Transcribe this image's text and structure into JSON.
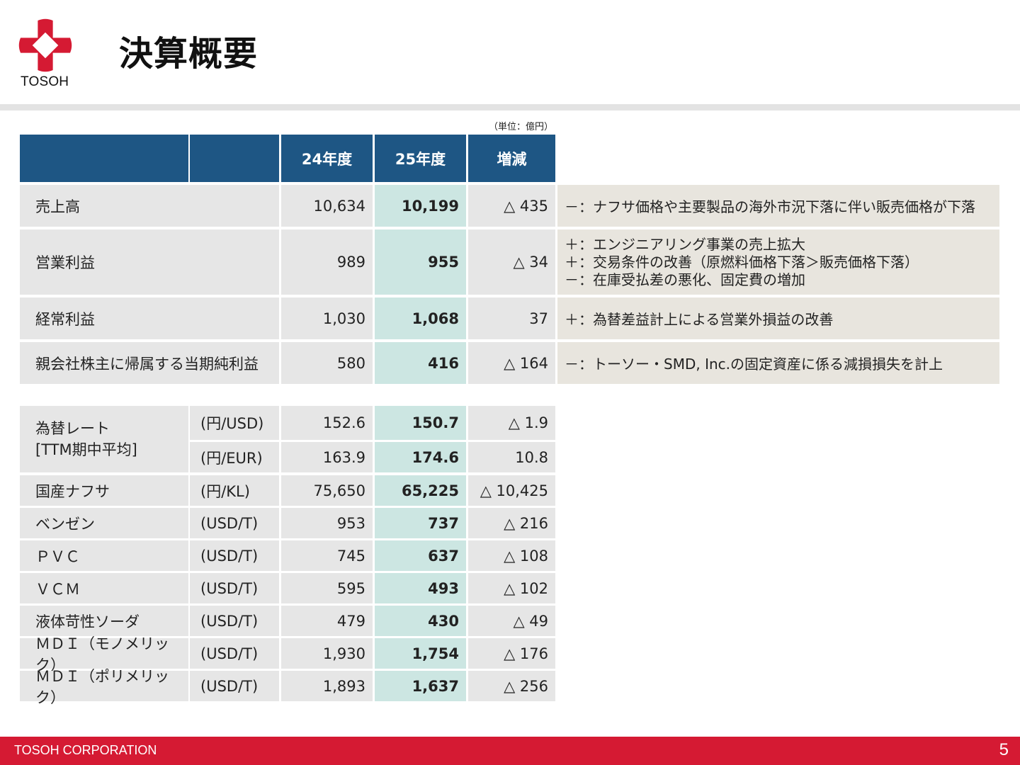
{
  "header": {
    "logo_text": "TOSOH",
    "title": "決算概要",
    "unit_note": "（単位：億円）"
  },
  "colors": {
    "brand_red": "#d51a33",
    "header_blue": "#1e5684",
    "highlight_teal": "#cce6e2",
    "row_gray": "#e6e6e6",
    "note_beige": "#e8e5de"
  },
  "summary_table": {
    "columns": [
      "24年度",
      "25年度",
      "増減"
    ],
    "rows": [
      {
        "label": "売上高",
        "fy24": "10,634",
        "fy25": "10,199",
        "diff": "△ 435",
        "notes": [
          "－：ナフサ価格や主要製品の海外市況下落に伴い販売価格が下落"
        ]
      },
      {
        "label": "営業利益",
        "fy24": "989",
        "fy25": "955",
        "diff": "△ 34",
        "notes": [
          "＋：エンジニアリング事業の売上拡大",
          "＋：交易条件の改善（原燃料価格下落＞販売価格下落）",
          "－：在庫受払差の悪化、固定費の増加"
        ]
      },
      {
        "label": "経常利益",
        "fy24": "1,030",
        "fy25": "1,068",
        "diff": "37",
        "notes": [
          "＋：為替差益計上による営業外損益の改善"
        ]
      },
      {
        "label": "親会社株主に帰属する当期純利益",
        "fy24": "580",
        "fy25": "416",
        "diff": "△ 164",
        "notes": [
          "－：トーソー・SMD, Inc.の固定資産に係る減損損失を計上"
        ]
      }
    ]
  },
  "market_table": {
    "fx_label_line1": "為替レート",
    "fx_label_line2": "[TTM期中平均]",
    "rows": [
      {
        "label": "",
        "unit": "(円/USD)",
        "fy24": "152.6",
        "fy25": "150.7",
        "diff": "△ 1.9"
      },
      {
        "label": "",
        "unit": "(円/EUR)",
        "fy24": "163.9",
        "fy25": "174.6",
        "diff": "10.8"
      },
      {
        "label": "国産ナフサ",
        "unit": "(円/KL)",
        "fy24": "75,650",
        "fy25": "65,225",
        "diff": "△ 10,425"
      },
      {
        "label": "ベンゼン",
        "unit": "(USD/T)",
        "fy24": "953",
        "fy25": "737",
        "diff": "△ 216"
      },
      {
        "label": "ＰＶＣ",
        "unit": "(USD/T)",
        "fy24": "745",
        "fy25": "637",
        "diff": "△ 108"
      },
      {
        "label": "ＶＣＭ",
        "unit": "(USD/T)",
        "fy24": "595",
        "fy25": "493",
        "diff": "△ 102"
      },
      {
        "label": "液体苛性ソーダ",
        "unit": "(USD/T)",
        "fy24": "479",
        "fy25": "430",
        "diff": "△ 49"
      },
      {
        "label": "ＭＤＩ（モノメリック）",
        "unit": "(USD/T)",
        "fy24": "1,930",
        "fy25": "1,754",
        "diff": "△ 176"
      },
      {
        "label": "ＭＤＩ（ポリメリック）",
        "unit": "(USD/T)",
        "fy24": "1,893",
        "fy25": "1,637",
        "diff": "△ 256"
      }
    ]
  },
  "footer": {
    "company": "TOSOH CORPORATION",
    "page_number": "5"
  }
}
